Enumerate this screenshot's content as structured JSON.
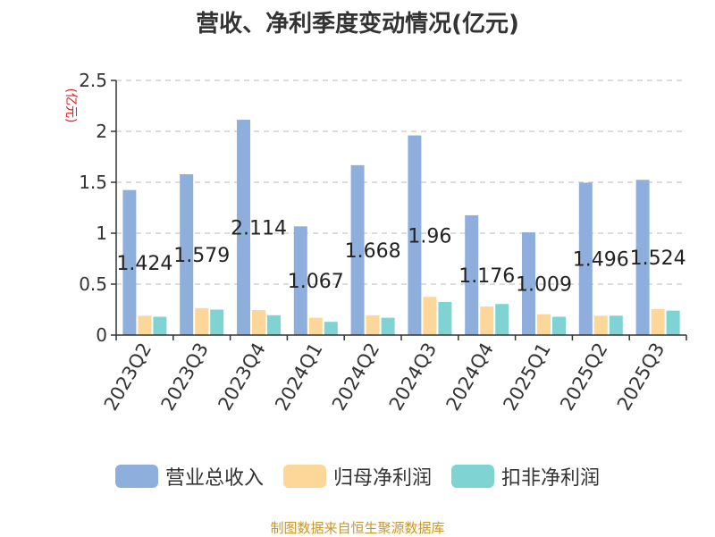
{
  "chart_data": {
    "type": "bar",
    "title": "营收、净利季度变动情况(亿元)",
    "ylabel": "(亿元)",
    "xlabel": "",
    "ylim": [
      0,
      2.5
    ],
    "yticks": [
      "0",
      "0.5",
      "1",
      "1.5",
      "2",
      "2.5"
    ],
    "ytick_values": [
      0,
      0.5,
      1,
      1.5,
      2,
      2.5
    ],
    "grid": true,
    "legend_position": "bottom",
    "categories": [
      "2023Q2",
      "2023Q3",
      "2023Q4",
      "2024Q1",
      "2024Q2",
      "2024Q3",
      "2024Q4",
      "2025Q1",
      "2025Q2",
      "2025Q3"
    ],
    "series": [
      {
        "name": "营业总收入",
        "color": "#8eaedc",
        "values": [
          1.424,
          1.579,
          2.114,
          1.067,
          1.668,
          1.96,
          1.176,
          1.009,
          1.496,
          1.524
        ],
        "labels": [
          "1.424",
          "1.579",
          "2.114",
          "1.067",
          "1.668",
          "1.96",
          "1.176",
          "1.009",
          "1.496",
          "1.524"
        ]
      },
      {
        "name": "归母净利润",
        "color": "#fdd699",
        "values": [
          0.19,
          0.265,
          0.245,
          0.17,
          0.195,
          0.375,
          0.28,
          0.205,
          0.19,
          0.255
        ]
      },
      {
        "name": "扣非净利润",
        "color": "#7fd3d3",
        "values": [
          0.18,
          0.25,
          0.195,
          0.13,
          0.17,
          0.325,
          0.305,
          0.18,
          0.19,
          0.24
        ]
      }
    ]
  },
  "source_text": "制图数据来自恒生聚源数据库"
}
